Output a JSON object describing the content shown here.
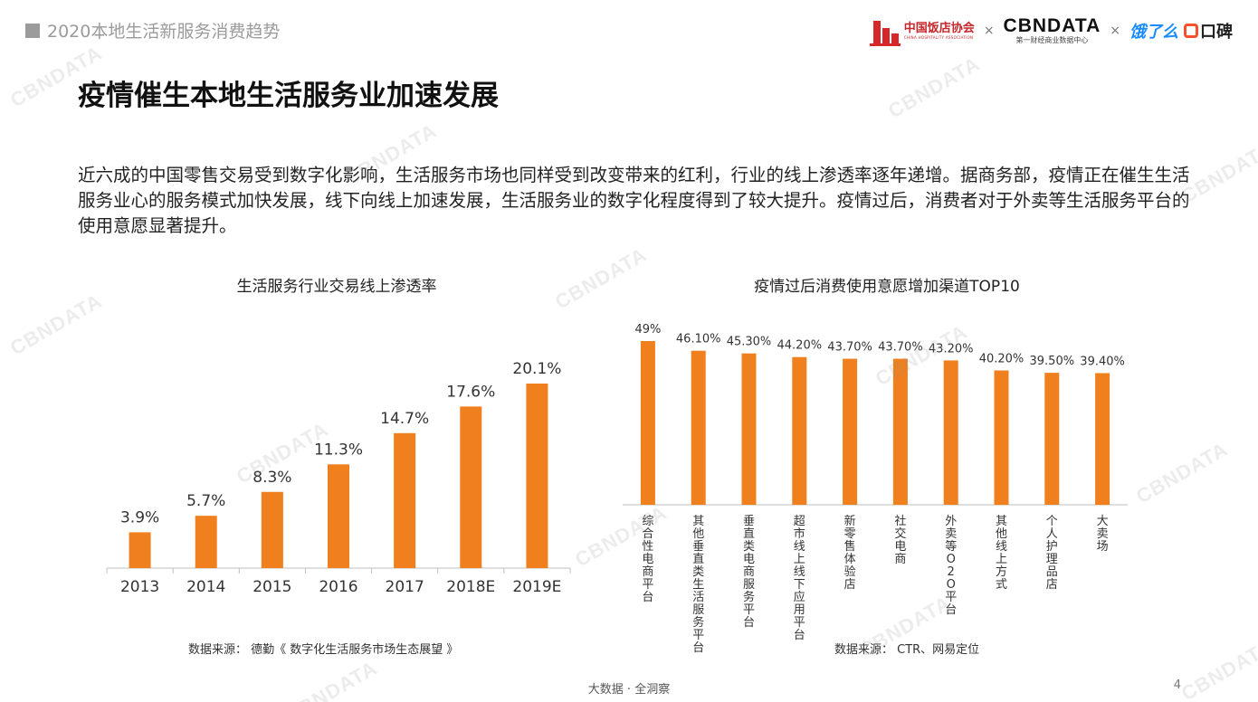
{
  "header": {
    "report_tag": "2020本地生活新服务消费趋势",
    "partners": {
      "cha_cn": "中国饭店协会",
      "cha_en": "CHINA HOSPITALITY ASSOCIATION",
      "times": "×",
      "cbn_en": "CBNDATA",
      "cbn_cn": "第一财经商业数据中心",
      "ele": "饿了么",
      "koubei": "口碑"
    }
  },
  "title": "疫情催生本地生活服务业加速发展",
  "paragraph": "近六成的中国零售交易受到数字化影响，生活服务市场也同样受到改变带来的红利，行业的线上渗透率逐年递增。据商务部，疫情正在催生生活服务业心的服务模式加快发展，线下向线上加速发展，生活服务业的数字化程度得到了较大提升。疫情过后，消费者对于外卖等生活服务平台的使用意愿显著提升。",
  "charts_meta": {
    "left_source": "数据来源：  德勤《 数字化生活服务市场生态展望 》",
    "right_source": "数据来源：  CTR、网易定位"
  },
  "chart_data": [
    {
      "type": "bar",
      "title": "生活服务行业交易线上渗透率",
      "categories": [
        "2013",
        "2014",
        "2015",
        "2016",
        "2017",
        "2018E",
        "2019E"
      ],
      "values": [
        3.9,
        5.7,
        8.3,
        11.3,
        14.7,
        17.6,
        20.1
      ],
      "labels": [
        "3.9%",
        "5.7%",
        "8.3%",
        "11.3%",
        "14.7%",
        "17.6%",
        "20.1%"
      ],
      "unit": "%",
      "ylim": [
        0,
        22
      ],
      "grid": false,
      "color": "#f07f1d"
    },
    {
      "type": "bar",
      "title": "疫情过后消费使用意愿增加渠道TOP10",
      "categories": [
        "综合性电商平台",
        "其他垂直类生活服务平台",
        "垂直类电商服务平台",
        "超市线上线下应用平台",
        "新零售体验店",
        "社交电商",
        "外卖等O2O平台",
        "其他线上方式",
        "个人护理品店",
        "大卖场"
      ],
      "values": [
        49,
        46.1,
        45.3,
        44.2,
        43.7,
        43.7,
        43.2,
        40.2,
        39.5,
        39.4
      ],
      "labels": [
        "49%",
        "46.10%",
        "45.30%",
        "44.20%",
        "43.70%",
        "43.70%",
        "43.20%",
        "40.20%",
        "39.50%",
        "39.40%"
      ],
      "unit": "%",
      "ylim": [
        0,
        49
      ],
      "grid": false,
      "color": "#f07f1d"
    }
  ],
  "watermark": "CBNDATA",
  "footer": "大数据 · 全洞察",
  "page_number": "4",
  "colors": {
    "accent": "#f07f1d",
    "tag_gray": "#9b9b9b"
  }
}
